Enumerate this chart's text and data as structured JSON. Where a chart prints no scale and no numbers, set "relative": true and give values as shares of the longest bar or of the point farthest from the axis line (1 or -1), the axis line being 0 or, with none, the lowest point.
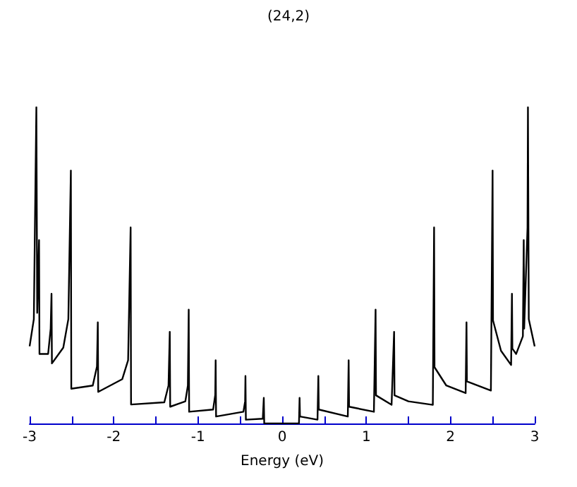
{
  "chart_data": {
    "type": "line",
    "title": "(24,2)",
    "xlabel": "Energy (eV)",
    "relative": true,
    "grid": false,
    "marker": "none",
    "line_style": "solid",
    "xlim": [
      -3,
      3
    ],
    "xticks": [
      -3,
      {
        "value": -2.5,
        "label": null
      },
      -2,
      {
        "value": -1.5,
        "label": null
      },
      -1,
      {
        "value": -0.5,
        "label": null
      },
      0,
      {
        "value": 0.5,
        "label": null
      },
      1,
      {
        "value": 1.5,
        "label": null
      },
      2,
      {
        "value": 2.5,
        "label": null
      },
      3
    ],
    "series": [
      {
        "color": "#000000",
        "x": [
          -3.0,
          -2.95,
          -2.92,
          -2.91,
          -2.888,
          -2.883,
          -2.78,
          -2.75,
          -2.74,
          -2.735,
          -2.6,
          -2.54,
          -2.51,
          -2.505,
          -2.25,
          -2.2,
          -2.19,
          -2.185,
          -1.9,
          -1.83,
          -1.8,
          -1.795,
          -1.4,
          -1.35,
          -1.335,
          -1.33,
          -1.15,
          -1.12,
          -1.11,
          -1.105,
          -0.82,
          -0.795,
          -0.79,
          -0.785,
          -0.46,
          -0.44,
          -0.436,
          -0.431,
          -0.23,
          -0.218,
          -0.213,
          0.2,
          0.207,
          0.212,
          0.42,
          0.43,
          0.435,
          0.78,
          0.79,
          0.795,
          1.09,
          1.11,
          1.115,
          1.3,
          1.33,
          1.335,
          1.5,
          1.79,
          1.805,
          1.81,
          1.95,
          2.18,
          2.19,
          2.195,
          2.48,
          2.5,
          2.505,
          2.6,
          2.72,
          2.73,
          2.735,
          2.78,
          2.86,
          2.87,
          2.875,
          2.915,
          2.92,
          2.93,
          3.0
        ],
        "values": [
          0.244,
          0.33,
          1.0,
          0.35,
          0.58,
          0.22,
          0.22,
          0.3,
          0.41,
          0.19,
          0.24,
          0.33,
          0.8,
          0.11,
          0.12,
          0.18,
          0.32,
          0.1,
          0.14,
          0.2,
          0.62,
          0.06,
          0.067,
          0.12,
          0.29,
          0.053,
          0.07,
          0.12,
          0.36,
          0.037,
          0.044,
          0.09,
          0.2,
          0.022,
          0.037,
          0.07,
          0.15,
          0.012,
          0.015,
          0.081,
          0,
          0,
          0.081,
          0.022,
          0.012,
          0.15,
          0.044,
          0.022,
          0.2,
          0.053,
          0.037,
          0.36,
          0.089,
          0.059,
          0.29,
          0.089,
          0.07,
          0.059,
          0.62,
          0.178,
          0.12,
          0.096,
          0.32,
          0.133,
          0.104,
          0.8,
          0.326,
          0.23,
          0.185,
          0.41,
          0.237,
          0.22,
          0.276,
          0.58,
          0.3,
          0.62,
          1.0,
          0.33,
          0.244
        ]
      }
    ]
  }
}
